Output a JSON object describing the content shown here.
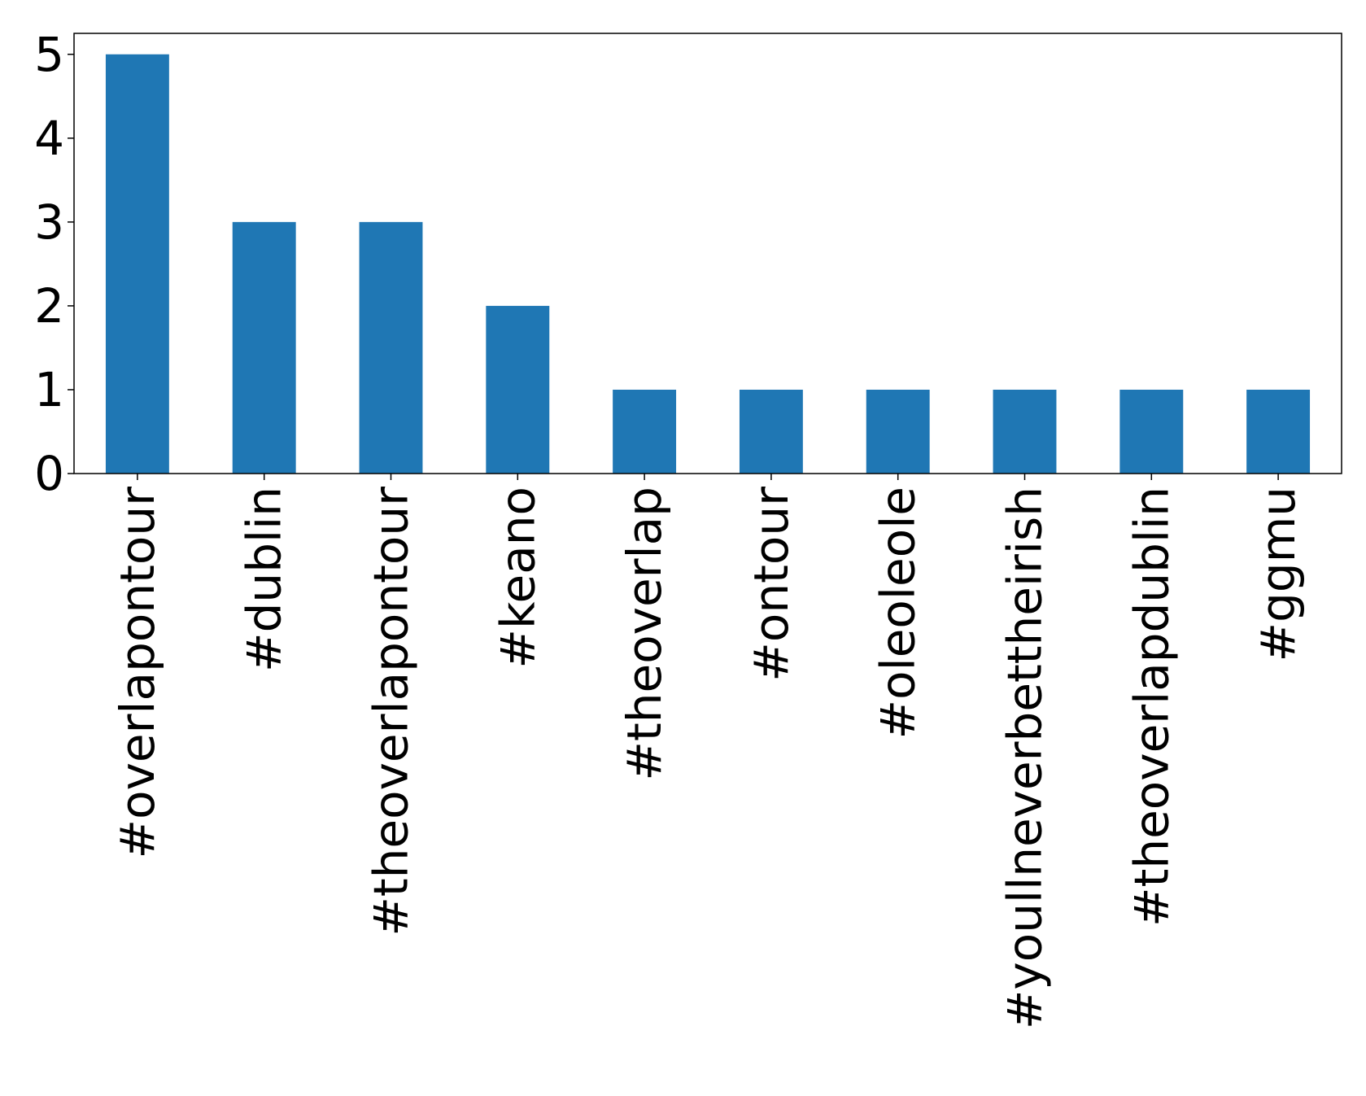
{
  "chart_data": {
    "type": "bar",
    "title": "",
    "xlabel": "",
    "ylabel": "",
    "categories": [
      "#overlapontour",
      "#dublin",
      "#theoverlapontour",
      "#keano",
      "#theoverlap",
      "#ontour",
      "#oleoleole",
      "#youllneverbettheirish",
      "#theoverlapdublin",
      "#ggmu"
    ],
    "values": [
      5,
      3,
      3,
      2,
      1,
      1,
      1,
      1,
      1,
      1
    ],
    "ylim": [
      0,
      5.25
    ],
    "yticks": [
      "0",
      "1",
      "2",
      "3",
      "4",
      "5"
    ],
    "bar_color": "#1f77b4",
    "grid": false,
    "legend": "none"
  }
}
